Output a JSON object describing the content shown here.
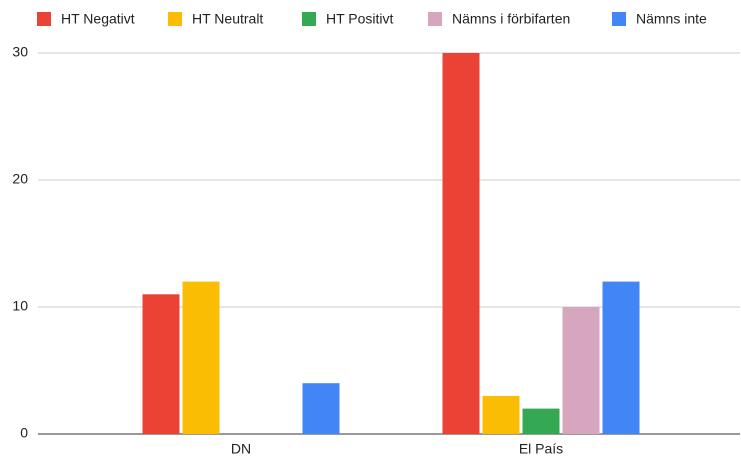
{
  "chart_data": {
    "type": "bar",
    "categories": [
      "DN",
      "El País"
    ],
    "series": [
      {
        "name": "HT Negativt",
        "color": "#ea4335",
        "values": [
          11,
          30
        ]
      },
      {
        "name": "HT Neutralt",
        "color": "#fbbc04",
        "values": [
          12,
          3
        ]
      },
      {
        "name": "HT Positivt",
        "color": "#34a853",
        "values": [
          0,
          2
        ]
      },
      {
        "name": "Nämns i förbifarten",
        "color": "#d5a6bd",
        "values": [
          0,
          10
        ]
      },
      {
        "name": "Nämns inte",
        "color": "#4285f4",
        "values": [
          4,
          12
        ]
      }
    ],
    "ylim": [
      0,
      30
    ],
    "yticks": [
      0,
      10,
      20,
      30
    ],
    "grid": true,
    "legend": "top"
  }
}
